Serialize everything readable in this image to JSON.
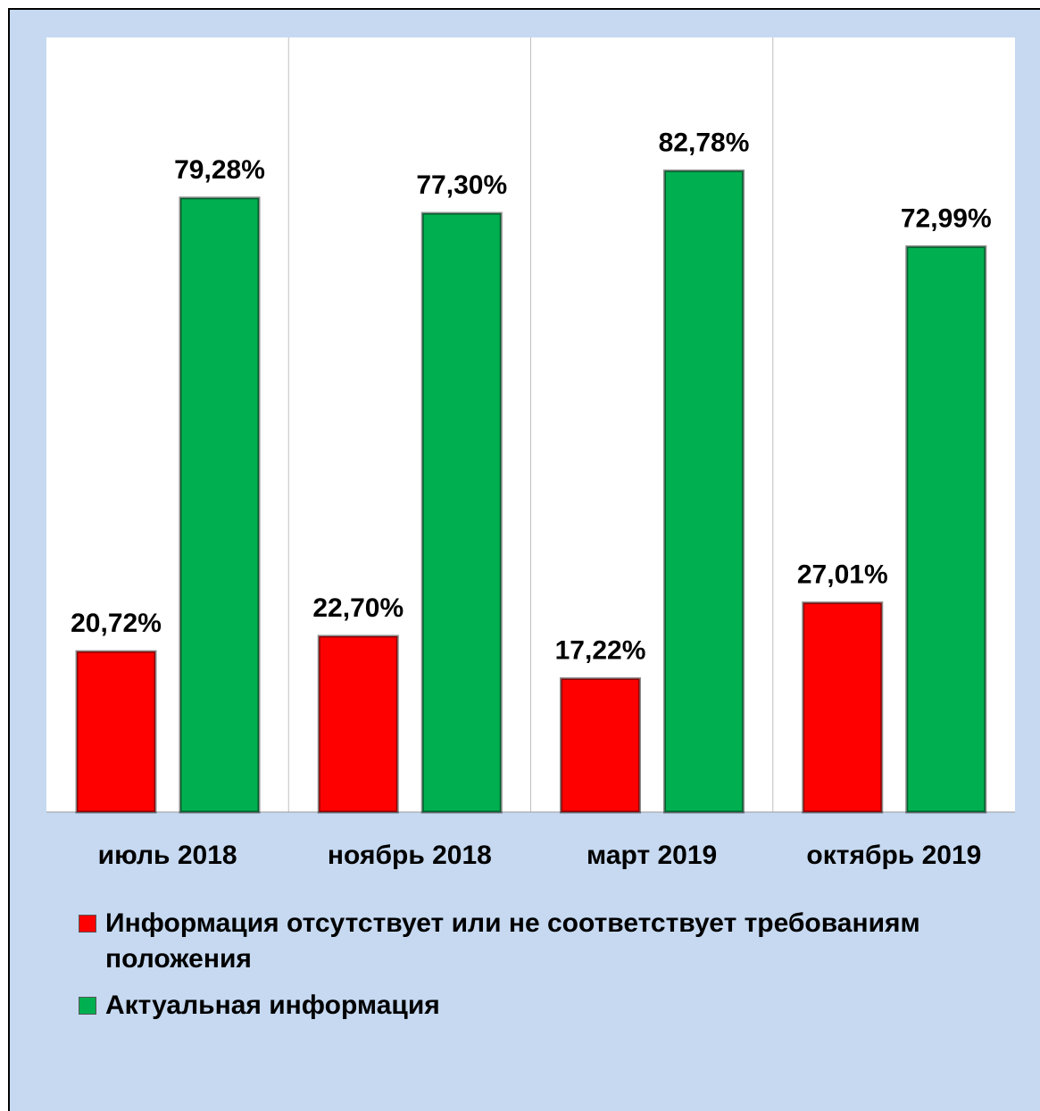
{
  "chart_data": {
    "type": "bar",
    "categories": [
      "июль 2018",
      "ноябрь 2018",
      "март 2019",
      "октябрь 2019"
    ],
    "series": [
      {
        "name": "Информация отсутствует или не соответствует требованиям положения",
        "color": "#ff0000",
        "values": [
          20.72,
          22.7,
          17.22,
          27.01
        ],
        "value_labels": [
          "20,72%",
          "22,70%",
          "17,22%",
          "27,01%"
        ]
      },
      {
        "name": "Актуальная информация",
        "color": "#00b050",
        "values": [
          79.28,
          77.3,
          82.78,
          72.99
        ],
        "value_labels": [
          "79,28%",
          "77,30%",
          "82,78%",
          "72,99%"
        ]
      }
    ],
    "ylim": [
      0,
      100
    ]
  }
}
